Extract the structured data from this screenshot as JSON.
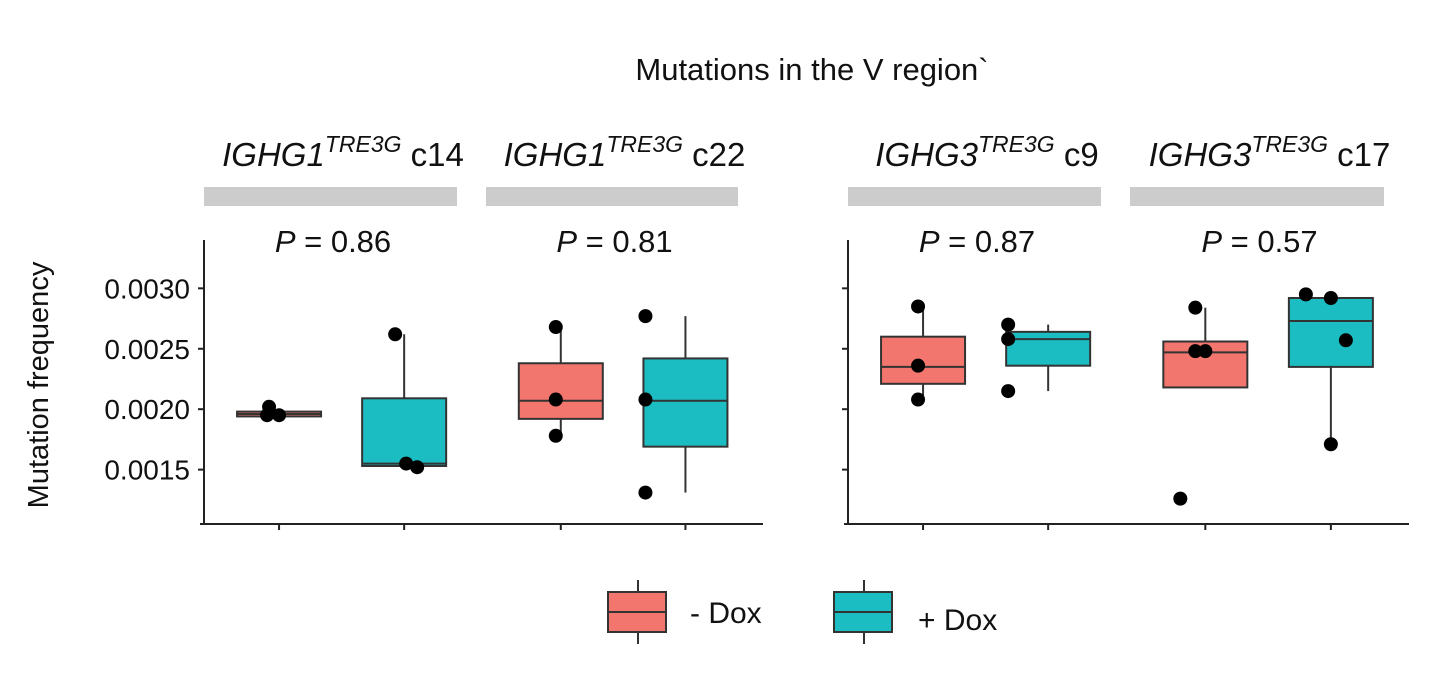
{
  "chart_data": {
    "type": "box",
    "title": "Mutations in the V region`",
    "ylabel": "Mutation frequency",
    "xlabel": "",
    "ylim": [
      0.00105,
      0.0034
    ],
    "yticks": [
      "0.0015",
      "0.0020",
      "0.0025",
      "0.0030"
    ],
    "ytick_values": [
      0.0015,
      0.002,
      0.0025,
      0.003
    ],
    "legend": {
      "placement": "bottom",
      "entries": [
        {
          "label": "- Dox",
          "color": "#F3766E"
        },
        {
          "label": "+ Dox",
          "color": "#1CBDC2"
        }
      ]
    },
    "panels": [
      {
        "gene": "IGHG1",
        "sup": "TRE3G",
        "clone": "c14",
        "p_prefix": "P",
        "p_text": " = 0.86",
        "groups": [
          {
            "name": "- Dox",
            "box": {
              "q1": 0.00194,
              "median": 0.00196,
              "q3": 0.00198,
              "whisker_low": 0.00194,
              "whisker_high": 0.00198
            },
            "points": [
              0.00202,
              0.00195,
              0.00195
            ]
          },
          {
            "name": "+ Dox",
            "box": {
              "q1": 0.00153,
              "median": 0.00155,
              "q3": 0.00209,
              "whisker_low": 0.00153,
              "whisker_high": 0.00262
            },
            "points": [
              0.00262,
              0.00155,
              0.00152
            ]
          }
        ]
      },
      {
        "gene": "IGHG1",
        "sup": "TRE3G",
        "clone": "c22",
        "p_prefix": "P",
        "p_text": " = 0.81",
        "groups": [
          {
            "name": "- Dox",
            "box": {
              "q1": 0.00192,
              "median": 0.00207,
              "q3": 0.00238,
              "whisker_low": 0.00178,
              "whisker_high": 0.00268
            },
            "points": [
              0.00268,
              0.00208,
              0.00178
            ]
          },
          {
            "name": "+ Dox",
            "box": {
              "q1": 0.00169,
              "median": 0.00207,
              "q3": 0.00242,
              "whisker_low": 0.00131,
              "whisker_high": 0.00277
            },
            "points": [
              0.00277,
              0.00208,
              0.00131
            ]
          }
        ]
      },
      {
        "gene": "IGHG3",
        "sup": "TRE3G",
        "clone": "c9",
        "p_prefix": "P",
        "p_text": " = 0.87",
        "groups": [
          {
            "name": "- Dox",
            "box": {
              "q1": 0.00221,
              "median": 0.00235,
              "q3": 0.0026,
              "whisker_low": 0.00208,
              "whisker_high": 0.00285
            },
            "points": [
              0.00285,
              0.00236,
              0.00208
            ]
          },
          {
            "name": "+ Dox",
            "box": {
              "q1": 0.00236,
              "median": 0.00258,
              "q3": 0.00264,
              "whisker_low": 0.00215,
              "whisker_high": 0.0027
            },
            "points": [
              0.0027,
              0.00258,
              0.00215
            ]
          }
        ]
      },
      {
        "gene": "IGHG3",
        "sup": "TRE3G",
        "clone": "c17",
        "p_prefix": "P",
        "p_text": " = 0.57",
        "groups": [
          {
            "name": "- Dox",
            "box": {
              "q1": 0.00218,
              "median": 0.00247,
              "q3": 0.00256,
              "whisker_low": 0.00218,
              "whisker_high": 0.00284
            },
            "points": [
              0.00284,
              0.00248,
              0.00248,
              0.00126
            ]
          },
          {
            "name": "+ Dox",
            "box": {
              "q1": 0.00235,
              "median": 0.00273,
              "q3": 0.00292,
              "whisker_low": 0.00171,
              "whisker_high": 0.00292
            },
            "points": [
              0.00295,
              0.00292,
              0.00257,
              0.00171
            ]
          }
        ]
      }
    ]
  }
}
